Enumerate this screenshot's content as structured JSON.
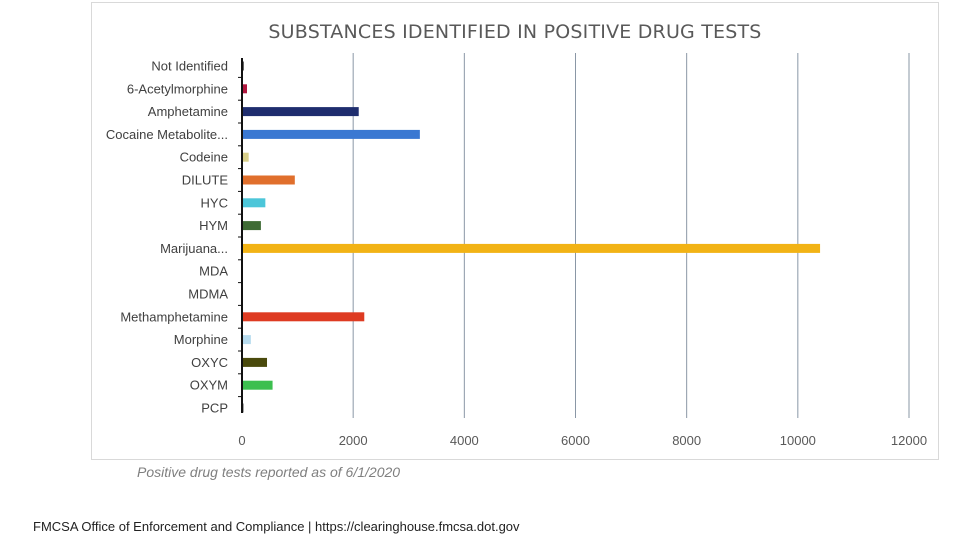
{
  "chart_data": {
    "type": "bar",
    "orientation": "horizontal",
    "title": "SUBSTANCES IDENTIFIED IN POSITIVE DRUG TESTS",
    "categories": [
      "Not Identified",
      "6-Acetylmorphine",
      "Amphetamine",
      "Cocaine Metabolite...",
      "Codeine",
      "DILUTE",
      "HYC",
      "HYM",
      "Marijuana...",
      "MDA",
      "MDMA",
      "Methamphetamine",
      "Morphine",
      "OXYC",
      "OXYM",
      "PCP"
    ],
    "values": [
      30,
      90,
      2100,
      3200,
      120,
      950,
      420,
      340,
      10400,
      10,
      10,
      2200,
      160,
      450,
      550,
      25
    ],
    "bar_colors": [
      "#1a1a1a",
      "#b0173e",
      "#1f2d6e",
      "#3a78d2",
      "#d8cf8a",
      "#e06f2c",
      "#4cc6d9",
      "#3f6b35",
      "#f2b315",
      "#555555",
      "#555555",
      "#de3b22",
      "#b8dcef",
      "#4a4a0c",
      "#3cbf4f",
      "#1a1a1a"
    ],
    "xlim": [
      0,
      12000
    ],
    "x_ticks": [
      "0",
      "2000",
      "4000",
      "6000",
      "8000",
      "10000",
      "12000"
    ],
    "grid": "vertical",
    "legend": "none"
  },
  "caption": "Positive drug tests reported as of 6/1/2020",
  "footer": "FMCSA Office of Enforcement and Compliance | https://clearinghouse.fmcsa.dot.gov"
}
